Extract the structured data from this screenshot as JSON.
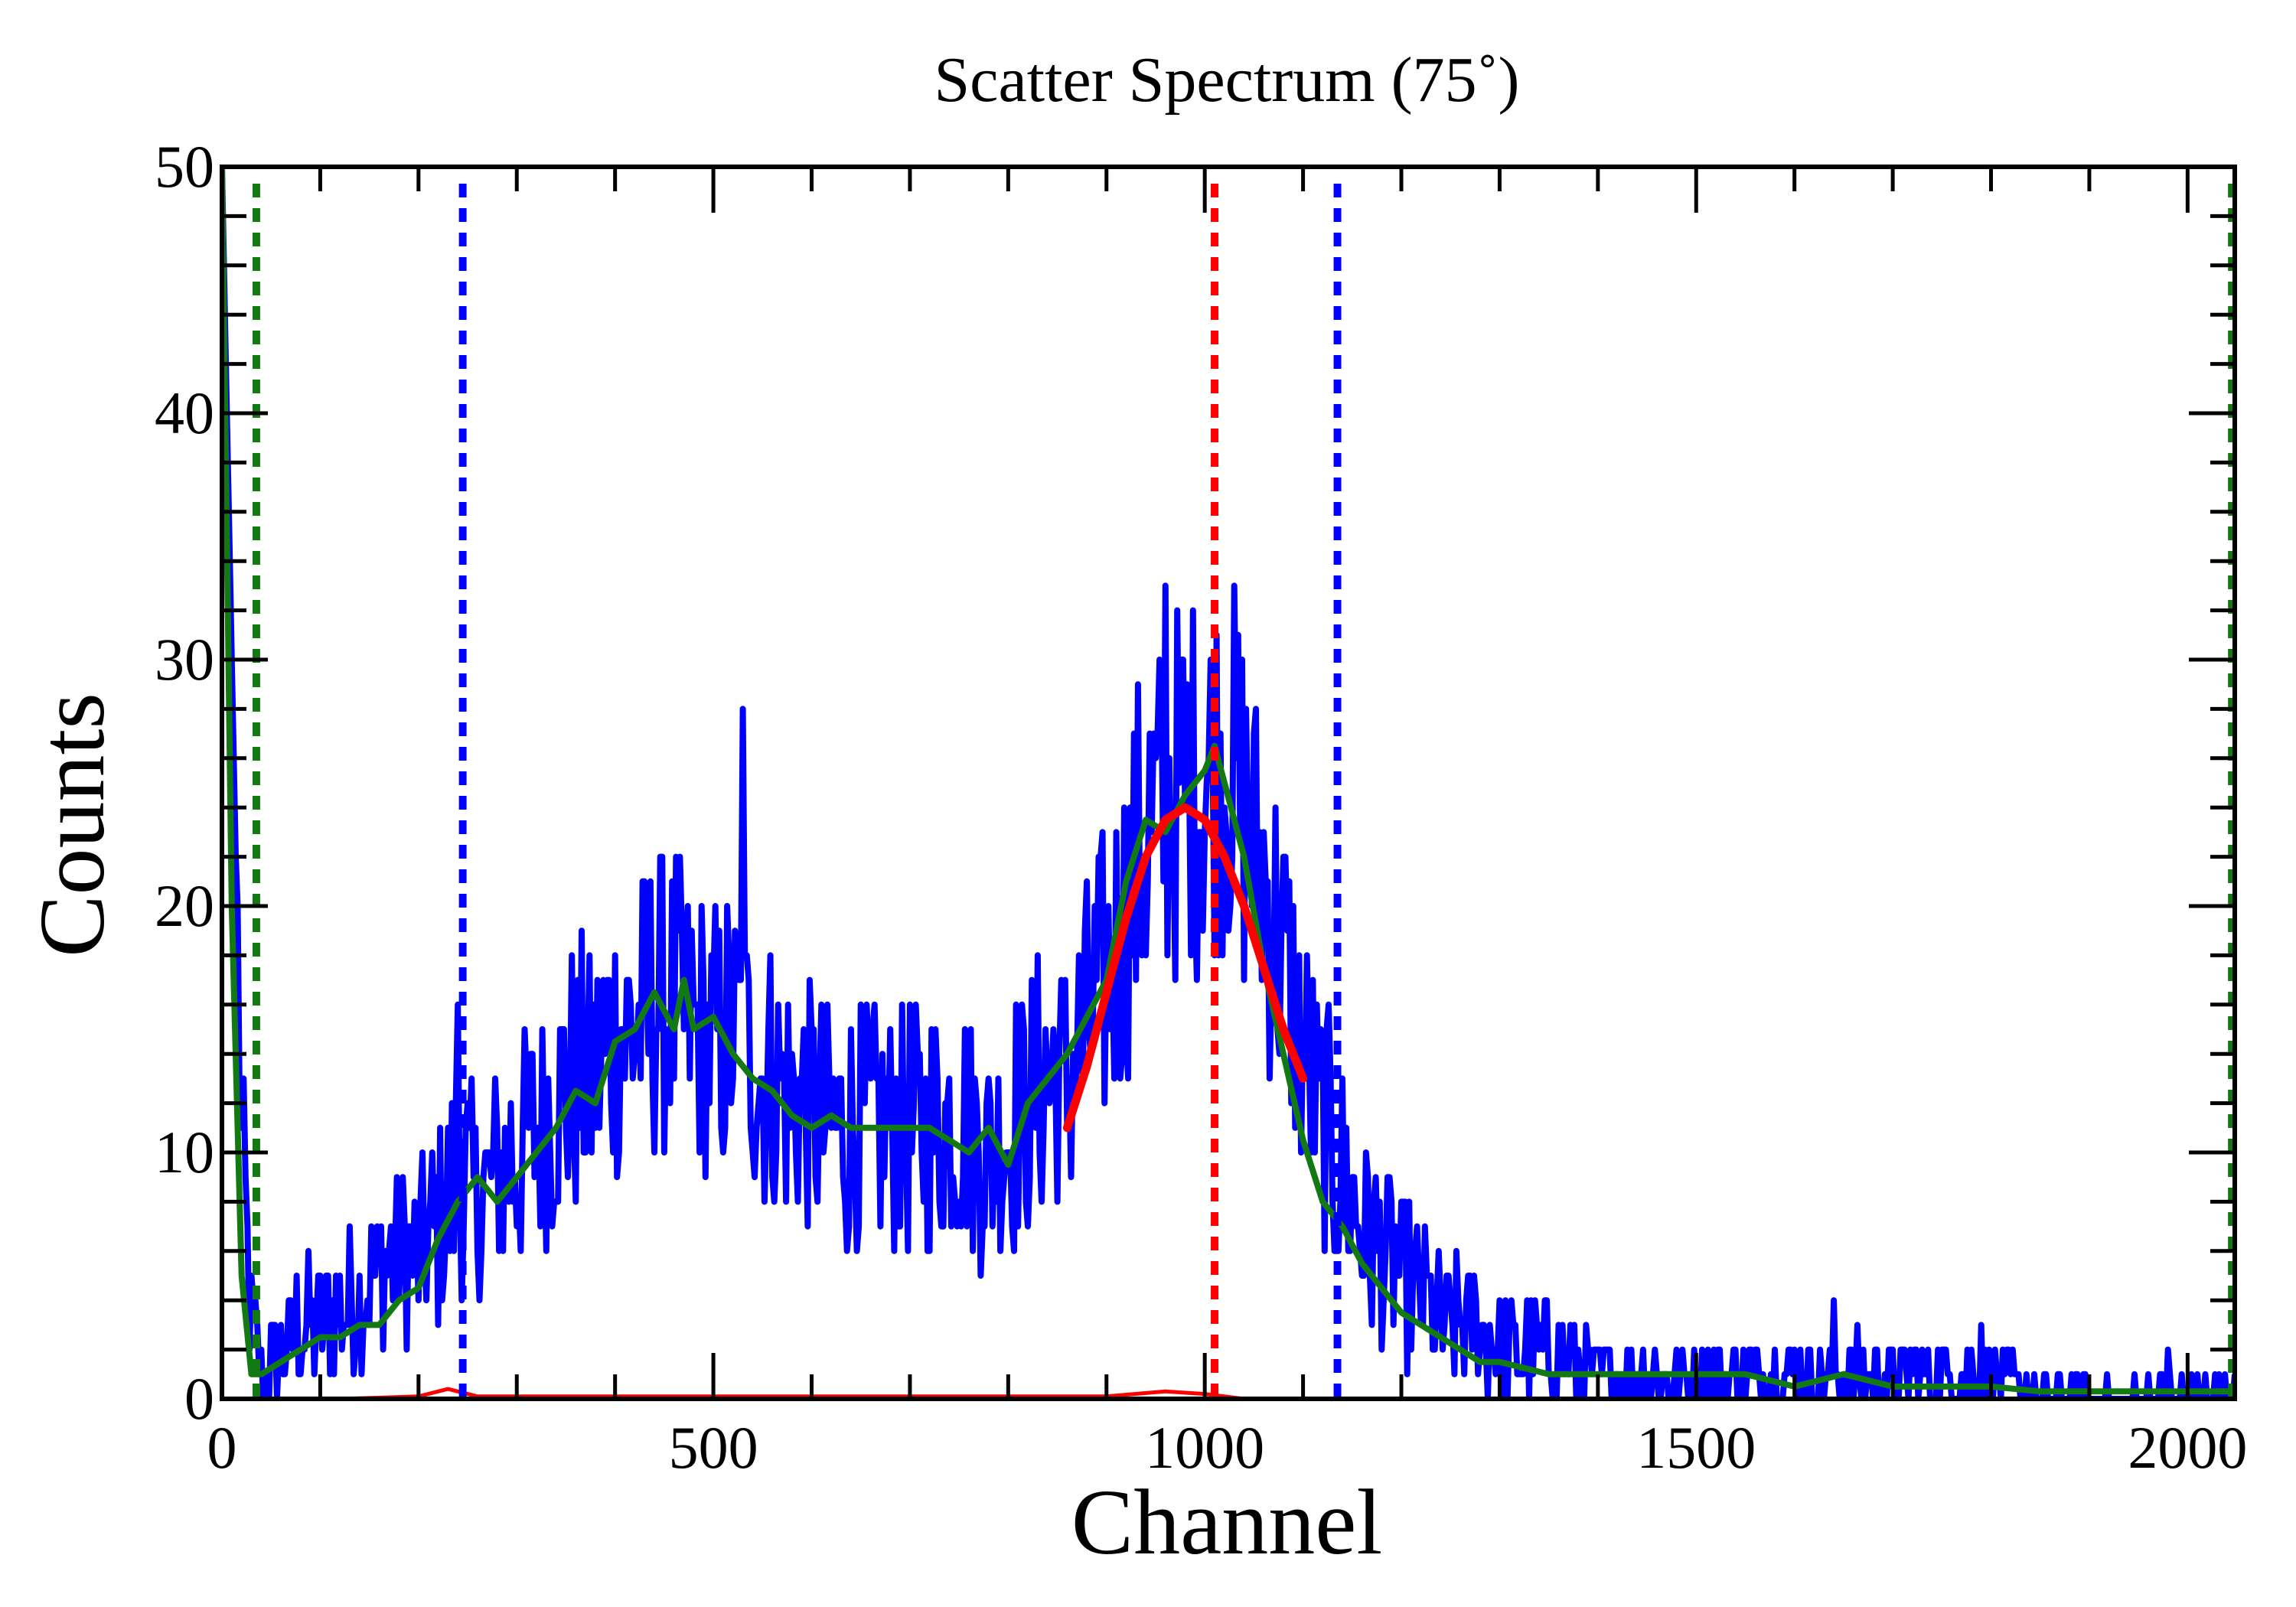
{
  "chart_data": {
    "type": "line",
    "title": "Scatter Spectrum (75˚)",
    "xlabel": "Channel",
    "ylabel": "Counts",
    "xlim": [
      0,
      2048
    ],
    "ylim": [
      0,
      50
    ],
    "x_ticks": [
      "0",
      "500",
      "1000",
      "1500",
      "2000"
    ],
    "y_ticks": [
      "0",
      "10",
      "20",
      "30",
      "40",
      "50"
    ],
    "grid": false,
    "legend": "none",
    "series": [
      {
        "role": "raw-counts",
        "color": "#0000ff",
        "x": [
          0,
          10,
          20,
          30,
          40,
          60,
          80,
          100,
          120,
          140,
          160,
          180,
          200,
          220,
          240,
          260,
          280,
          300,
          320,
          340,
          360,
          380,
          400,
          420,
          440,
          460,
          480,
          500,
          520,
          540,
          560,
          580,
          600,
          620,
          640,
          660,
          680,
          700,
          720,
          740,
          760,
          780,
          800,
          820,
          840,
          860,
          880,
          900,
          920,
          940,
          960,
          980,
          1000,
          1020,
          1040,
          1060,
          1080,
          1100,
          1120,
          1140,
          1160,
          1180,
          1200,
          1220,
          1240,
          1260,
          1280,
          1300,
          1350,
          1400,
          1450,
          1500,
          1550,
          1600,
          1650,
          1700,
          1750,
          1800,
          1850,
          1900,
          1950,
          2000,
          2048
        ],
        "values": [
          50,
          30,
          10,
          3,
          1,
          2,
          3,
          3,
          4,
          4,
          5,
          6,
          6,
          7,
          9,
          8,
          9,
          10,
          11,
          12,
          13,
          13,
          15,
          15,
          16,
          16,
          15,
          14,
          15,
          14,
          13,
          12,
          12,
          11,
          11,
          11,
          11,
          11,
          11,
          11,
          11,
          10,
          11,
          12,
          13,
          13,
          15,
          17,
          20,
          23,
          24,
          25,
          25,
          26,
          24,
          21,
          18,
          14,
          11,
          9,
          7,
          6,
          5,
          4,
          3,
          3,
          3,
          2,
          2,
          1,
          1,
          1,
          1,
          1,
          1,
          1,
          1,
          1,
          0,
          0,
          0,
          0,
          0
        ],
        "peaks": [
          {
            "x": 240,
            "y": 16
          },
          {
            "x": 530,
            "y": 28
          },
          {
            "x": 960,
            "y": 33
          },
          {
            "x": 1030,
            "y": 33
          },
          {
            "x": 1640,
            "y": 4
          },
          {
            "x": 1790,
            "y": 3
          },
          {
            "x": 1980,
            "y": 2
          }
        ]
      },
      {
        "role": "smoothed",
        "color": "#137a13",
        "x": [
          0,
          10,
          20,
          30,
          40,
          60,
          80,
          100,
          120,
          140,
          160,
          180,
          200,
          220,
          240,
          260,
          280,
          300,
          320,
          340,
          360,
          380,
          400,
          420,
          440,
          460,
          470,
          480,
          500,
          520,
          540,
          560,
          580,
          600,
          620,
          640,
          660,
          680,
          700,
          720,
          740,
          760,
          780,
          800,
          820,
          840,
          860,
          880,
          900,
          920,
          940,
          960,
          980,
          1000,
          1010,
          1020,
          1040,
          1060,
          1080,
          1100,
          1120,
          1140,
          1160,
          1180,
          1200,
          1220,
          1240,
          1260,
          1280,
          1300,
          1350,
          1400,
          1450,
          1500,
          1550,
          1600,
          1650,
          1700,
          1750,
          1800,
          1850,
          1900,
          1950,
          2000,
          2048
        ],
        "values": [
          50,
          20,
          5,
          1,
          1,
          1.5,
          2,
          2.5,
          2.5,
          3,
          3,
          4,
          4.5,
          6.5,
          8,
          9,
          8,
          9,
          10,
          11,
          12.5,
          12,
          14.5,
          15,
          16.5,
          15,
          17,
          15,
          15.5,
          14,
          13,
          12.5,
          11.5,
          11,
          11.5,
          11,
          11,
          11,
          11,
          11,
          10.5,
          10,
          11,
          9.5,
          12,
          13,
          14,
          15.5,
          17,
          21,
          23.5,
          23,
          24.5,
          25.5,
          26.5,
          25,
          22,
          17.5,
          14,
          10.5,
          8,
          7,
          5.5,
          4.5,
          3.5,
          3,
          2.5,
          2,
          1.5,
          1.5,
          1,
          1,
          1,
          1,
          1,
          0.5,
          1,
          0.5,
          0.5,
          0.5,
          0.3,
          0.3,
          0.3,
          0.3,
          0.3
        ]
      },
      {
        "role": "gaussian-fit",
        "color": "#ff0000",
        "x": [
          860,
          880,
          900,
          920,
          940,
          960,
          980,
          1000,
          1020,
          1040,
          1060,
          1080,
          1100
        ],
        "values": [
          11,
          13.5,
          16.5,
          19.5,
          22,
          23.5,
          24,
          23.5,
          22,
          20,
          17.5,
          15,
          13
        ]
      },
      {
        "role": "baseline",
        "color": "#ff0000",
        "x": [
          120,
          200,
          230,
          260,
          300,
          400,
          500,
          560,
          680,
          800,
          900,
          960,
          1000,
          1040
        ],
        "values": [
          0,
          0.1,
          0.4,
          0.1,
          0.1,
          0.1,
          0.1,
          0.1,
          0.1,
          0.1,
          0.1,
          0.3,
          0.2,
          0
        ]
      }
    ],
    "vertical_lines": [
      {
        "x": 35,
        "color": "#137a13",
        "style": "dotted"
      },
      {
        "x": 245,
        "color": "#0000ff",
        "style": "dotted"
      },
      {
        "x": 1010,
        "color": "#ff0000",
        "style": "dotted"
      },
      {
        "x": 1135,
        "color": "#0000ff",
        "style": "dotted"
      },
      {
        "x": 2045,
        "color": "#137a13",
        "style": "dotted"
      }
    ]
  }
}
